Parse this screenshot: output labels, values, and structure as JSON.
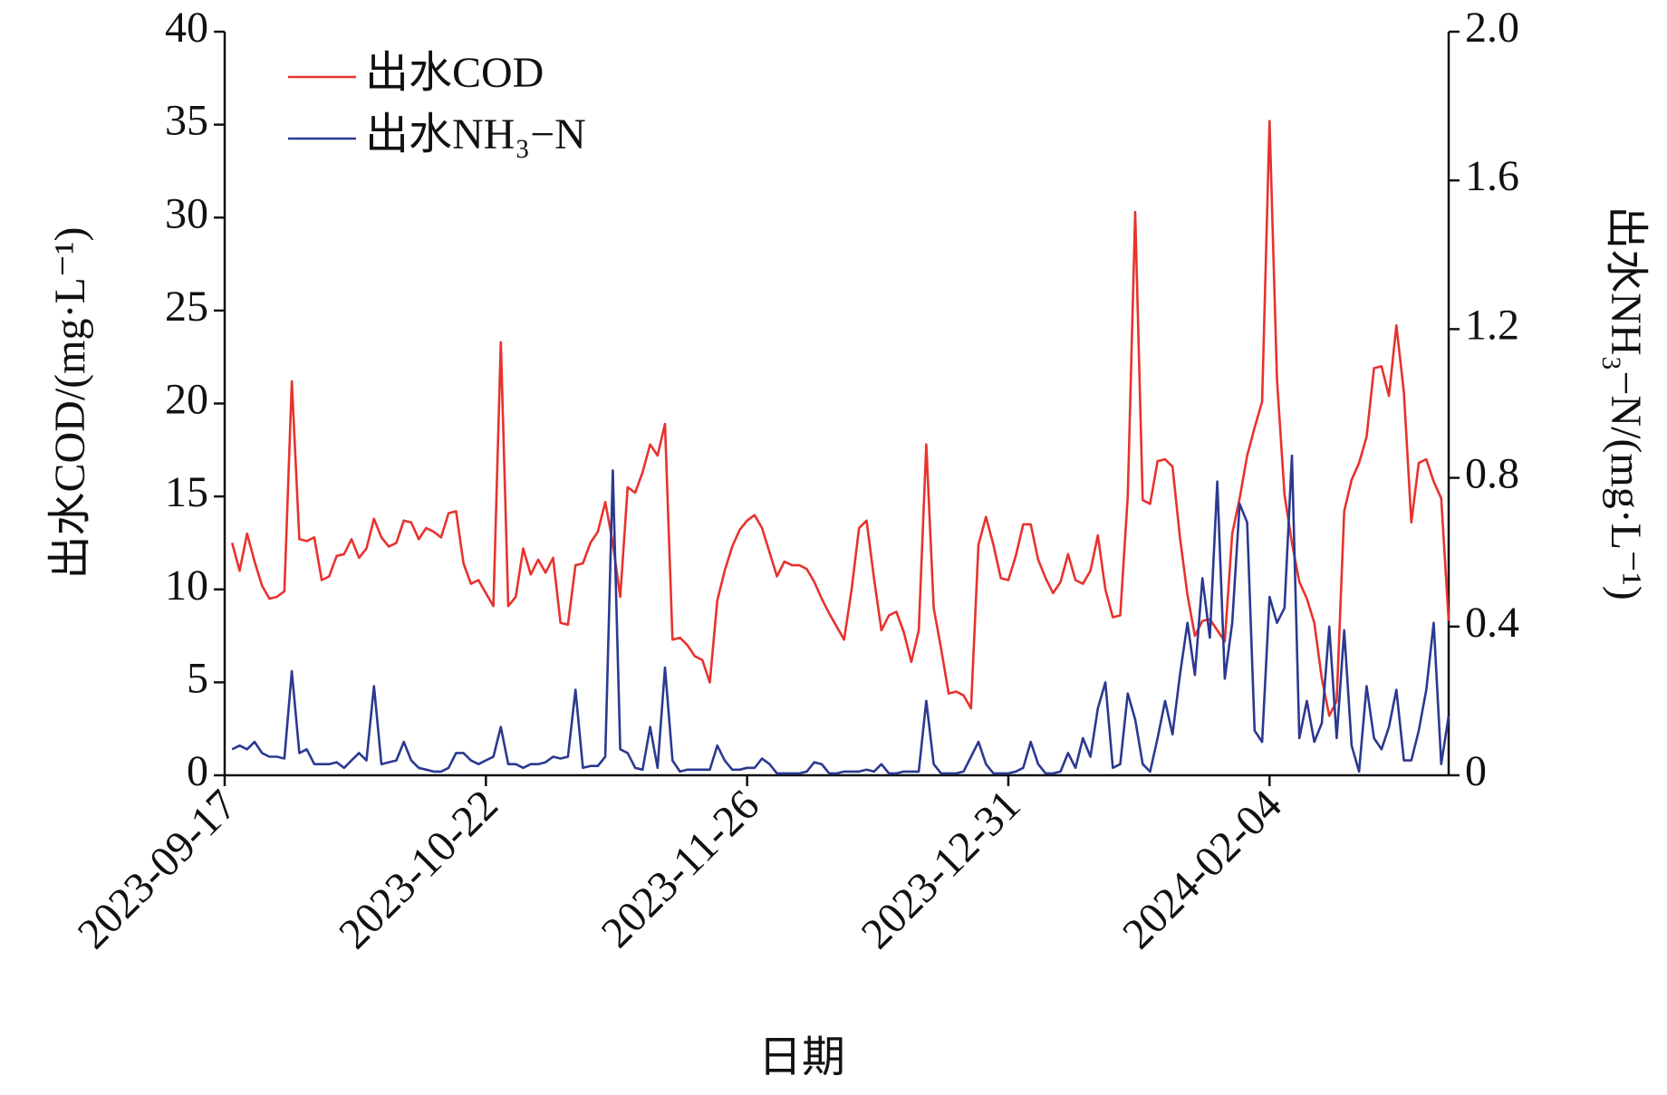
{
  "chart_data": {
    "type": "line",
    "xlabel": "日期",
    "ylabel": "出水COD/(mg·L⁻¹)",
    "y2label": "出水NH₃−N/(mg·L⁻¹)",
    "xlim": [
      "2023-09-17",
      "2024-02-28"
    ],
    "xticks": [
      "2023-09-17",
      "2023-10-22",
      "2023-11-26",
      "2023-12-31",
      "2024-02-04"
    ],
    "ylim": [
      0,
      40
    ],
    "yticks": [
      0,
      5,
      10,
      15,
      20,
      25,
      30,
      35,
      40
    ],
    "y2lim": [
      0,
      2
    ],
    "y2ticks": [
      0,
      0.4,
      0.8,
      1.2,
      1.6,
      {
        "value": 2,
        "label": "2.0"
      }
    ],
    "legend": "upper left",
    "x": [
      "2023-09-18",
      "2023-09-19",
      "2023-09-20",
      "2023-09-21",
      "2023-09-22",
      "2023-09-23",
      "2023-09-24",
      "2023-09-25",
      "2023-09-26",
      "2023-09-27",
      "2023-09-28",
      "2023-09-29",
      "2023-09-30",
      "2023-10-01",
      "2023-10-02",
      "2023-10-03",
      "2023-10-04",
      "2023-10-05",
      "2023-10-06",
      "2023-10-07",
      "2023-10-08",
      "2023-10-09",
      "2023-10-10",
      "2023-10-11",
      "2023-10-12",
      "2023-10-13",
      "2023-10-14",
      "2023-10-15",
      "2023-10-16",
      "2023-10-17",
      "2023-10-18",
      "2023-10-19",
      "2023-10-20",
      "2023-10-21",
      "2023-10-22",
      "2023-10-23",
      "2023-10-24",
      "2023-10-25",
      "2023-10-26",
      "2023-10-27",
      "2023-10-28",
      "2023-10-29",
      "2023-10-30",
      "2023-10-31",
      "2023-11-01",
      "2023-11-02",
      "2023-11-03",
      "2023-11-04",
      "2023-11-05",
      "2023-11-06",
      "2023-11-07",
      "2023-11-08",
      "2023-11-09",
      "2023-11-10",
      "2023-11-11",
      "2023-11-12",
      "2023-11-13",
      "2023-11-14",
      "2023-11-15",
      "2023-11-16",
      "2023-11-17",
      "2023-11-18",
      "2023-11-19",
      "2023-11-20",
      "2023-11-21",
      "2023-11-22",
      "2023-11-23",
      "2023-11-24",
      "2023-11-25",
      "2023-11-26",
      "2023-11-27",
      "2023-11-28",
      "2023-11-29",
      "2023-11-30",
      "2023-12-01",
      "2023-12-02",
      "2023-12-03",
      "2023-12-04",
      "2023-12-05",
      "2023-12-06",
      "2023-12-07",
      "2023-12-08",
      "2023-12-09",
      "2023-12-10",
      "2023-12-11",
      "2023-12-12",
      "2023-12-13",
      "2023-12-14",
      "2023-12-15",
      "2023-12-16",
      "2023-12-17",
      "2023-12-18",
      "2023-12-19",
      "2023-12-20",
      "2023-12-21",
      "2023-12-22",
      "2023-12-23",
      "2023-12-24",
      "2023-12-25",
      "2023-12-26",
      "2023-12-27",
      "2023-12-28",
      "2023-12-29",
      "2023-12-30",
      "2023-12-31",
      "2024-01-01",
      "2024-01-02",
      "2024-01-03",
      "2024-01-04",
      "2024-01-05",
      "2024-01-06",
      "2024-01-07",
      "2024-01-08",
      "2024-01-09",
      "2024-01-10",
      "2024-01-11",
      "2024-01-12",
      "2024-01-13",
      "2024-01-14",
      "2024-01-15",
      "2024-01-16",
      "2024-01-17",
      "2024-01-18",
      "2024-01-19",
      "2024-01-20",
      "2024-01-21",
      "2024-01-22",
      "2024-01-23",
      "2024-01-24",
      "2024-01-25",
      "2024-01-26",
      "2024-01-27",
      "2024-01-28",
      "2024-01-29",
      "2024-01-30",
      "2024-01-31",
      "2024-02-01",
      "2024-02-02",
      "2024-02-03",
      "2024-02-04",
      "2024-02-05",
      "2024-02-06",
      "2024-02-07",
      "2024-02-08",
      "2024-02-09",
      "2024-02-10",
      "2024-02-11",
      "2024-02-12",
      "2024-02-13",
      "2024-02-14",
      "2024-02-15",
      "2024-02-16",
      "2024-02-17",
      "2024-02-18",
      "2024-02-19",
      "2024-02-20",
      "2024-02-21",
      "2024-02-22",
      "2024-02-23",
      "2024-02-24",
      "2024-02-25",
      "2024-02-26",
      "2024-02-27",
      "2024-02-28"
    ],
    "series": [
      {
        "name": "出水COD",
        "color": "#e8322d",
        "values": [
          12.5,
          11,
          13,
          11.5,
          10.2,
          9.5,
          9.6,
          9.9,
          21.2,
          12.7,
          12.6,
          12.8,
          10.5,
          10.7,
          11.8,
          11.9,
          12.7,
          11.7,
          12.2,
          13.8,
          12.8,
          12.3,
          12.5,
          13.7,
          13.6,
          12.7,
          13.3,
          13.1,
          12.8,
          14.1,
          14.2,
          11.4,
          10.3,
          10.5,
          9.8,
          9.1,
          23.3,
          9.1,
          9.6,
          12.2,
          10.8,
          11.6,
          10.9,
          11.7,
          8.2,
          8.1,
          11.3,
          11.4,
          12.5,
          13.1,
          14.7,
          12.5,
          9.6,
          15.5,
          15.2,
          16.3,
          17.8,
          17.2,
          18.9,
          7.3,
          7.4,
          7.0,
          6.4,
          6.2,
          5.0,
          9.4,
          11.0,
          12.3,
          13.2,
          13.7,
          14.0,
          13.3,
          12.0,
          10.7,
          11.5,
          11.3,
          11.3,
          11.1,
          10.4,
          9.5,
          8.7,
          8.0,
          7.3,
          10.0,
          13.3,
          13.7,
          10.6,
          7.8,
          8.6,
          8.8,
          7.7,
          6.1,
          7.8,
          17.8,
          9.0,
          6.8,
          4.4,
          4.5,
          4.3,
          3.6,
          12.4,
          13.9,
          12.4,
          10.6,
          10.5,
          11.8,
          13.5,
          13.5,
          11.6,
          10.6,
          9.8,
          10.4,
          11.9,
          10.5,
          10.3,
          11.0,
          12.9,
          10.0,
          8.5,
          8.6,
          15.0,
          30.3,
          14.8,
          14.6,
          16.9,
          17.0,
          16.6,
          12.8,
          9.7,
          7.5,
          8.3,
          8.4,
          7.8,
          7.2,
          13.0,
          14.9,
          17.2,
          18.7,
          20.1,
          35.2,
          21.3,
          15.1,
          12.5,
          10.4,
          9.5,
          8.2,
          5.2,
          3.2,
          4.0,
          14.2,
          15.9,
          16.8,
          18.2,
          21.9,
          22.0,
          20.4,
          24.2,
          20.6,
          13.6,
          16.8,
          17.0,
          15.8,
          14.9,
          8.3
        ]
      },
      {
        "name": "出水NH₃−N",
        "color": "#2b3990",
        "axis": "y2",
        "values": [
          0.07,
          0.08,
          0.07,
          0.09,
          0.06,
          0.05,
          0.05,
          0.045,
          0.28,
          0.06,
          0.07,
          0.03,
          0.03,
          0.03,
          0.035,
          0.02,
          0.04,
          0.06,
          0.04,
          0.24,
          0.03,
          0.035,
          0.04,
          0.09,
          0.04,
          0.02,
          0.015,
          0.01,
          0.01,
          0.02,
          0.06,
          0.06,
          0.04,
          0.03,
          0.04,
          0.05,
          0.13,
          0.03,
          0.03,
          0.02,
          0.03,
          0.03,
          0.035,
          0.05,
          0.045,
          0.05,
          0.23,
          0.02,
          0.025,
          0.025,
          0.05,
          0.82,
          0.07,
          0.06,
          0.02,
          0.015,
          0.13,
          0.02,
          0.29,
          0.04,
          0.01,
          0.015,
          0.015,
          0.015,
          0.015,
          0.08,
          0.04,
          0.015,
          0.015,
          0.02,
          0.02,
          0.045,
          0.03,
          0.005,
          0.005,
          0.005,
          0.005,
          0.01,
          0.035,
          0.03,
          0.005,
          0.005,
          0.01,
          0.01,
          0.01,
          0.015,
          0.01,
          0.03,
          0.005,
          0.005,
          0.01,
          0.01,
          0.01,
          0.2,
          0.03,
          0.005,
          0.005,
          0.005,
          0.01,
          0.05,
          0.09,
          0.03,
          0.005,
          0.005,
          0.005,
          0.01,
          0.02,
          0.09,
          0.03,
          0.005,
          0.005,
          0.01,
          0.06,
          0.02,
          0.1,
          0.05,
          0.18,
          0.25,
          0.02,
          0.03,
          0.22,
          0.15,
          0.03,
          0.01,
          0.1,
          0.2,
          0.11,
          0.27,
          0.41,
          0.27,
          0.53,
          0.37,
          0.79,
          0.26,
          0.41,
          0.73,
          0.68,
          0.12,
          0.09,
          0.48,
          0.41,
          0.45,
          0.86,
          0.1,
          0.2,
          0.09,
          0.14,
          0.4,
          0.1,
          0.39,
          0.08,
          0.01,
          0.24,
          0.1,
          0.07,
          0.13,
          0.23,
          0.04,
          0.04,
          0.12,
          0.23,
          0.41,
          0.03,
          0.16
        ]
      }
    ]
  }
}
